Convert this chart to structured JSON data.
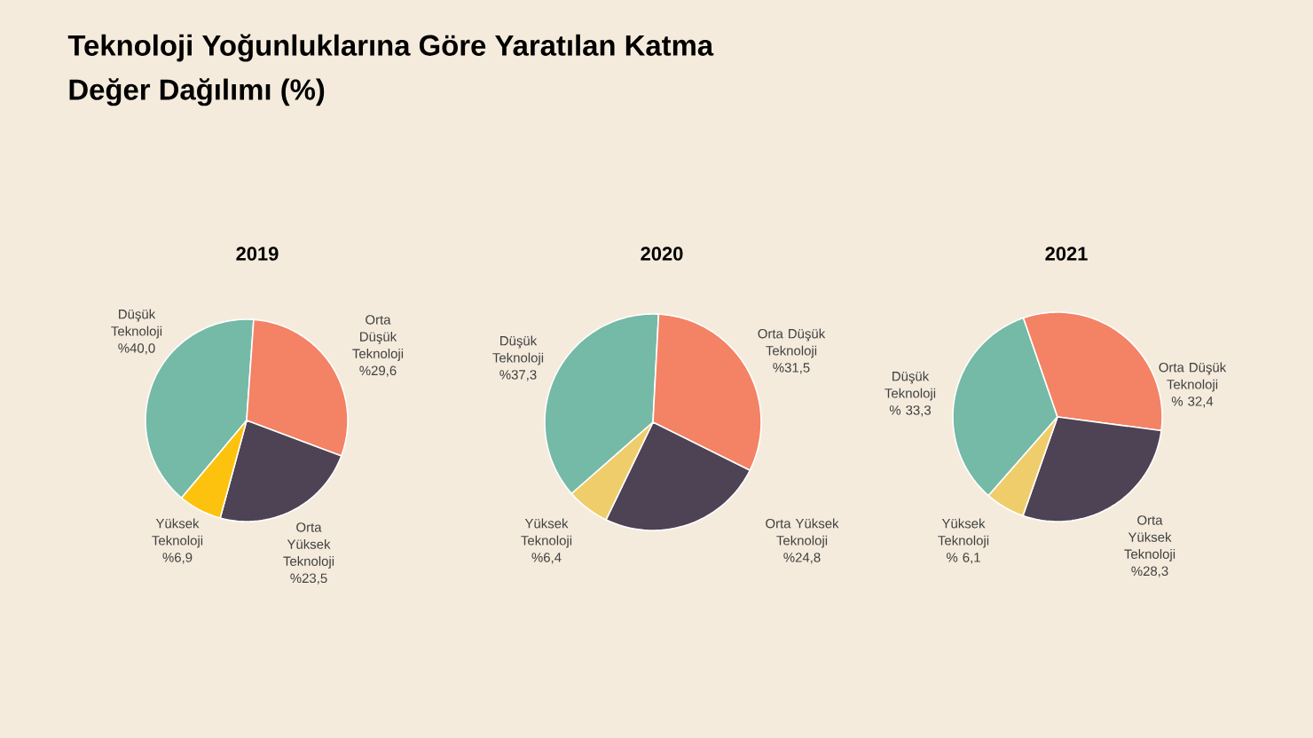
{
  "chart_data": [
    {
      "type": "other",
      "title": "Teknoloji Yoğunluklarına Göre Yaratılan Katma Değer Dağılımı (%)"
    },
    {
      "type": "pie",
      "title": "2019",
      "categories": [
        "Düşük Teknoloji",
        "Orta Düşük Teknoloji",
        "Orta Yüksek Teknoloji",
        "Yüksek Teknoloji"
      ],
      "values": [
        40.0,
        29.6,
        23.5,
        6.9
      ],
      "colors": [
        "#75b9a7",
        "#f48265",
        "#4e4255",
        "#fdc20d"
      ],
      "value_labels": [
        "%40,0",
        "%29,6",
        "%23,5",
        "%6,9"
      ]
    },
    {
      "type": "pie",
      "title": "2020",
      "categories": [
        "Düşük Teknoloji",
        "Orta Düşük Teknoloji",
        "Orta Yüksek Teknoloji",
        "Yüksek Teknoloji"
      ],
      "values": [
        37.3,
        31.5,
        24.8,
        6.4
      ],
      "colors": [
        "#75b9a7",
        "#f48265",
        "#4e4255",
        "#efcd6b"
      ],
      "value_labels": [
        "%37,3",
        "%31,5",
        "%24,8",
        "%6,4"
      ]
    },
    {
      "type": "pie",
      "title": "2021",
      "categories": [
        "Düşük Teknoloji",
        "Orta Düşük Teknoloji",
        "Orta Yüksek Teknoloji",
        "Yüksek Teknoloji"
      ],
      "values": [
        33.3,
        32.4,
        28.3,
        6.1
      ],
      "colors": [
        "#75b9a7",
        "#f48265",
        "#4e4255",
        "#efcd6b"
      ],
      "value_labels": [
        "% 33,3",
        "% 32,4",
        "%28,3",
        "% 6,1"
      ]
    }
  ]
}
